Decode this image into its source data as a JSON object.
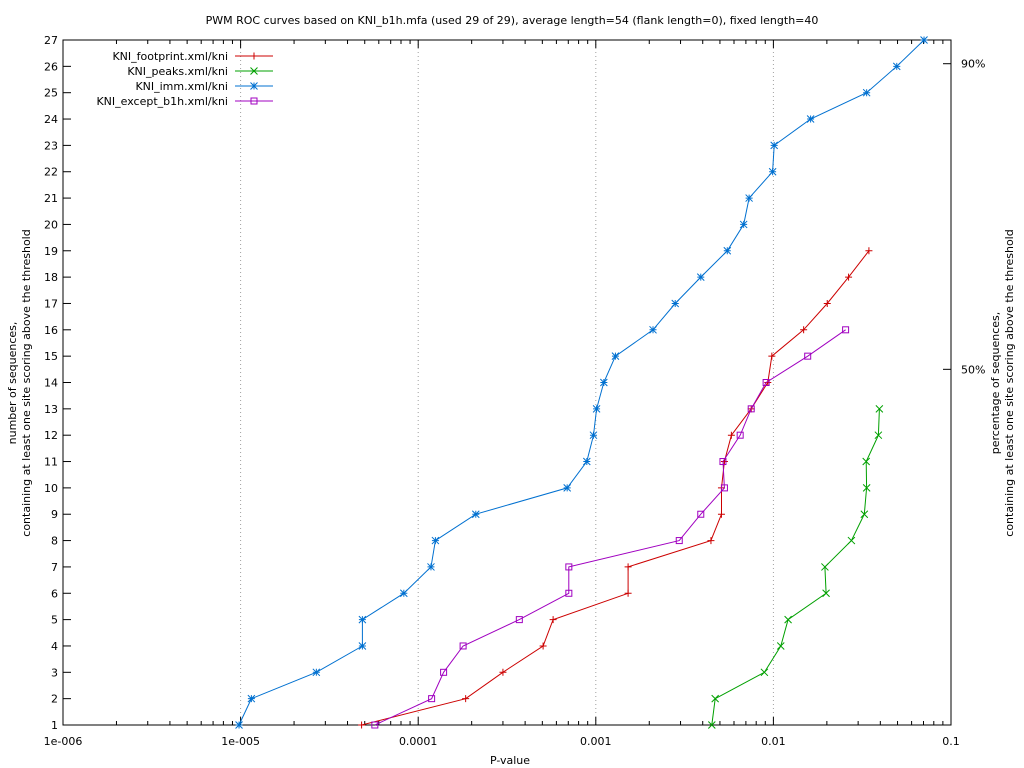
{
  "chart_data": {
    "type": "line",
    "title": "PWM ROC curves based on KNI_b1h.mfa (used 29 of 29), average length=54 (flank length=0), fixed length=40",
    "xlabel": "P-value",
    "ylabel_lines": [
      "number of sequences,",
      "containing at least one site scoring above the threshold"
    ],
    "y2label_lines": [
      "percentage of sequences,",
      "containing at least one site scoring above the threshold"
    ],
    "x_scale": "log",
    "xlim": [
      1e-06,
      0.1
    ],
    "ylim": [
      1,
      27
    ],
    "grid": "vertical dotted lines at decades",
    "legend_position": "top-left",
    "x_ticks": [
      {
        "value": 1e-06,
        "label": "1e-006"
      },
      {
        "value": 1e-05,
        "label": "1e-005"
      },
      {
        "value": 0.0001,
        "label": "0.0001"
      },
      {
        "value": 0.001,
        "label": "0.001"
      },
      {
        "value": 0.01,
        "label": "0.01"
      },
      {
        "value": 0.1,
        "label": "0.1"
      }
    ],
    "y_ticks": [
      1,
      2,
      3,
      4,
      5,
      6,
      7,
      8,
      9,
      10,
      11,
      12,
      13,
      14,
      15,
      16,
      17,
      18,
      19,
      20,
      21,
      22,
      23,
      24,
      25,
      26,
      27
    ],
    "y2_ticks": [
      {
        "value": 14.5,
        "label": "50%"
      },
      {
        "value": 26.1,
        "label": "90%"
      }
    ],
    "series": [
      {
        "name": "KNI_footprint.xml/kni",
        "color": "#cc0000",
        "marker": "plus",
        "points": [
          [
            4.8e-05,
            1
          ],
          [
            0.000185,
            2
          ],
          [
            0.0003,
            3
          ],
          [
            0.000505,
            4
          ],
          [
            0.000575,
            5
          ],
          [
            0.00152,
            6
          ],
          [
            0.00152,
            7
          ],
          [
            0.00445,
            8
          ],
          [
            0.0051,
            9
          ],
          [
            0.0051,
            10
          ],
          [
            0.0053,
            11
          ],
          [
            0.0058,
            12
          ],
          [
            0.0075,
            13
          ],
          [
            0.0093,
            14
          ],
          [
            0.0098,
            15
          ],
          [
            0.0148,
            16
          ],
          [
            0.0201,
            17
          ],
          [
            0.0265,
            18
          ],
          [
            0.0345,
            19
          ]
        ]
      },
      {
        "name": "KNI_peaks.xml/kni",
        "color": "#00a000",
        "marker": "x",
        "points": [
          [
            0.0045,
            1
          ],
          [
            0.0047,
            2
          ],
          [
            0.0089,
            3
          ],
          [
            0.011,
            4
          ],
          [
            0.0121,
            5
          ],
          [
            0.0198,
            6
          ],
          [
            0.0195,
            7
          ],
          [
            0.0275,
            8
          ],
          [
            0.0325,
            9
          ],
          [
            0.0335,
            10
          ],
          [
            0.0333,
            11
          ],
          [
            0.039,
            12
          ],
          [
            0.0395,
            13
          ]
        ]
      },
      {
        "name": "KNI_imm.xml/kni",
        "color": "#0070d0",
        "marker": "star",
        "points": [
          [
            9.8e-06,
            1
          ],
          [
            1.15e-05,
            2
          ],
          [
            2.67e-05,
            3
          ],
          [
            4.85e-05,
            4
          ],
          [
            4.85e-05,
            5
          ],
          [
            8.3e-05,
            6
          ],
          [
            0.000118,
            7
          ],
          [
            0.000125,
            8
          ],
          [
            0.000211,
            9
          ],
          [
            0.00069,
            10
          ],
          [
            0.00089,
            11
          ],
          [
            0.00097,
            12
          ],
          [
            0.00101,
            13
          ],
          [
            0.00111,
            14
          ],
          [
            0.00129,
            15
          ],
          [
            0.0021,
            16
          ],
          [
            0.0028,
            17
          ],
          [
            0.0039,
            18
          ],
          [
            0.0055,
            19
          ],
          [
            0.0068,
            20
          ],
          [
            0.0073,
            21
          ],
          [
            0.0099,
            22
          ],
          [
            0.0101,
            23
          ],
          [
            0.0162,
            24
          ],
          [
            0.0335,
            25
          ],
          [
            0.0495,
            26
          ],
          [
            0.0705,
            27
          ]
        ]
      },
      {
        "name": "KNI_except_b1h.xml/kni",
        "color": "#a000c0",
        "marker": "square",
        "points": [
          [
            5.7e-05,
            1
          ],
          [
            0.000119,
            2
          ],
          [
            0.000139,
            3
          ],
          [
            0.000179,
            4
          ],
          [
            0.000371,
            5
          ],
          [
            0.000705,
            6
          ],
          [
            0.000705,
            7
          ],
          [
            0.00295,
            8
          ],
          [
            0.0039,
            9
          ],
          [
            0.0053,
            10
          ],
          [
            0.0052,
            11
          ],
          [
            0.0065,
            12
          ],
          [
            0.0075,
            13
          ],
          [
            0.0091,
            14
          ],
          [
            0.0156,
            15
          ],
          [
            0.0255,
            16
          ]
        ]
      }
    ]
  }
}
